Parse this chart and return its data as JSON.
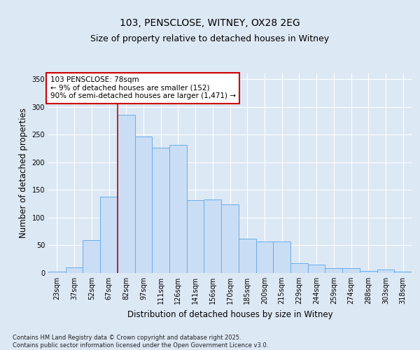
{
  "title_line1": "103, PENSCLOSE, WITNEY, OX28 2EG",
  "title_line2": "Size of property relative to detached houses in Witney",
  "xlabel": "Distribution of detached houses by size in Witney",
  "ylabel": "Number of detached properties",
  "categories": [
    "23sqm",
    "37sqm",
    "52sqm",
    "67sqm",
    "82sqm",
    "97sqm",
    "111sqm",
    "126sqm",
    "141sqm",
    "156sqm",
    "170sqm",
    "185sqm",
    "200sqm",
    "215sqm",
    "229sqm",
    "244sqm",
    "259sqm",
    "274sqm",
    "288sqm",
    "303sqm",
    "318sqm"
  ],
  "values": [
    3,
    10,
    59,
    138,
    286,
    246,
    226,
    231,
    132,
    133,
    124,
    62,
    57,
    57,
    18,
    15,
    9,
    9,
    4,
    6,
    2
  ],
  "bar_color": "#c9ddf5",
  "bar_edge_color": "#6aaee8",
  "annotation_text_line1": "103 PENSCLOSE: 78sqm",
  "annotation_text_line2": "← 9% of detached houses are smaller (152)",
  "annotation_text_line3": "90% of semi-detached houses are larger (1,471) →",
  "annotation_box_color": "#ffffff",
  "annotation_box_edge": "#cc0000",
  "red_line_index": 4,
  "ylim": [
    0,
    360
  ],
  "yticks": [
    0,
    50,
    100,
    150,
    200,
    250,
    300,
    350
  ],
  "background_color": "#dde8f5",
  "grid_color": "#ffffff",
  "footer_text": "Contains HM Land Registry data © Crown copyright and database right 2025.\nContains public sector information licensed under the Open Government Licence v3.0.",
  "title_fontsize": 10,
  "subtitle_fontsize": 9,
  "axis_label_fontsize": 8.5,
  "tick_fontsize": 7,
  "footer_fontsize": 6,
  "annotation_fontsize": 7.5
}
